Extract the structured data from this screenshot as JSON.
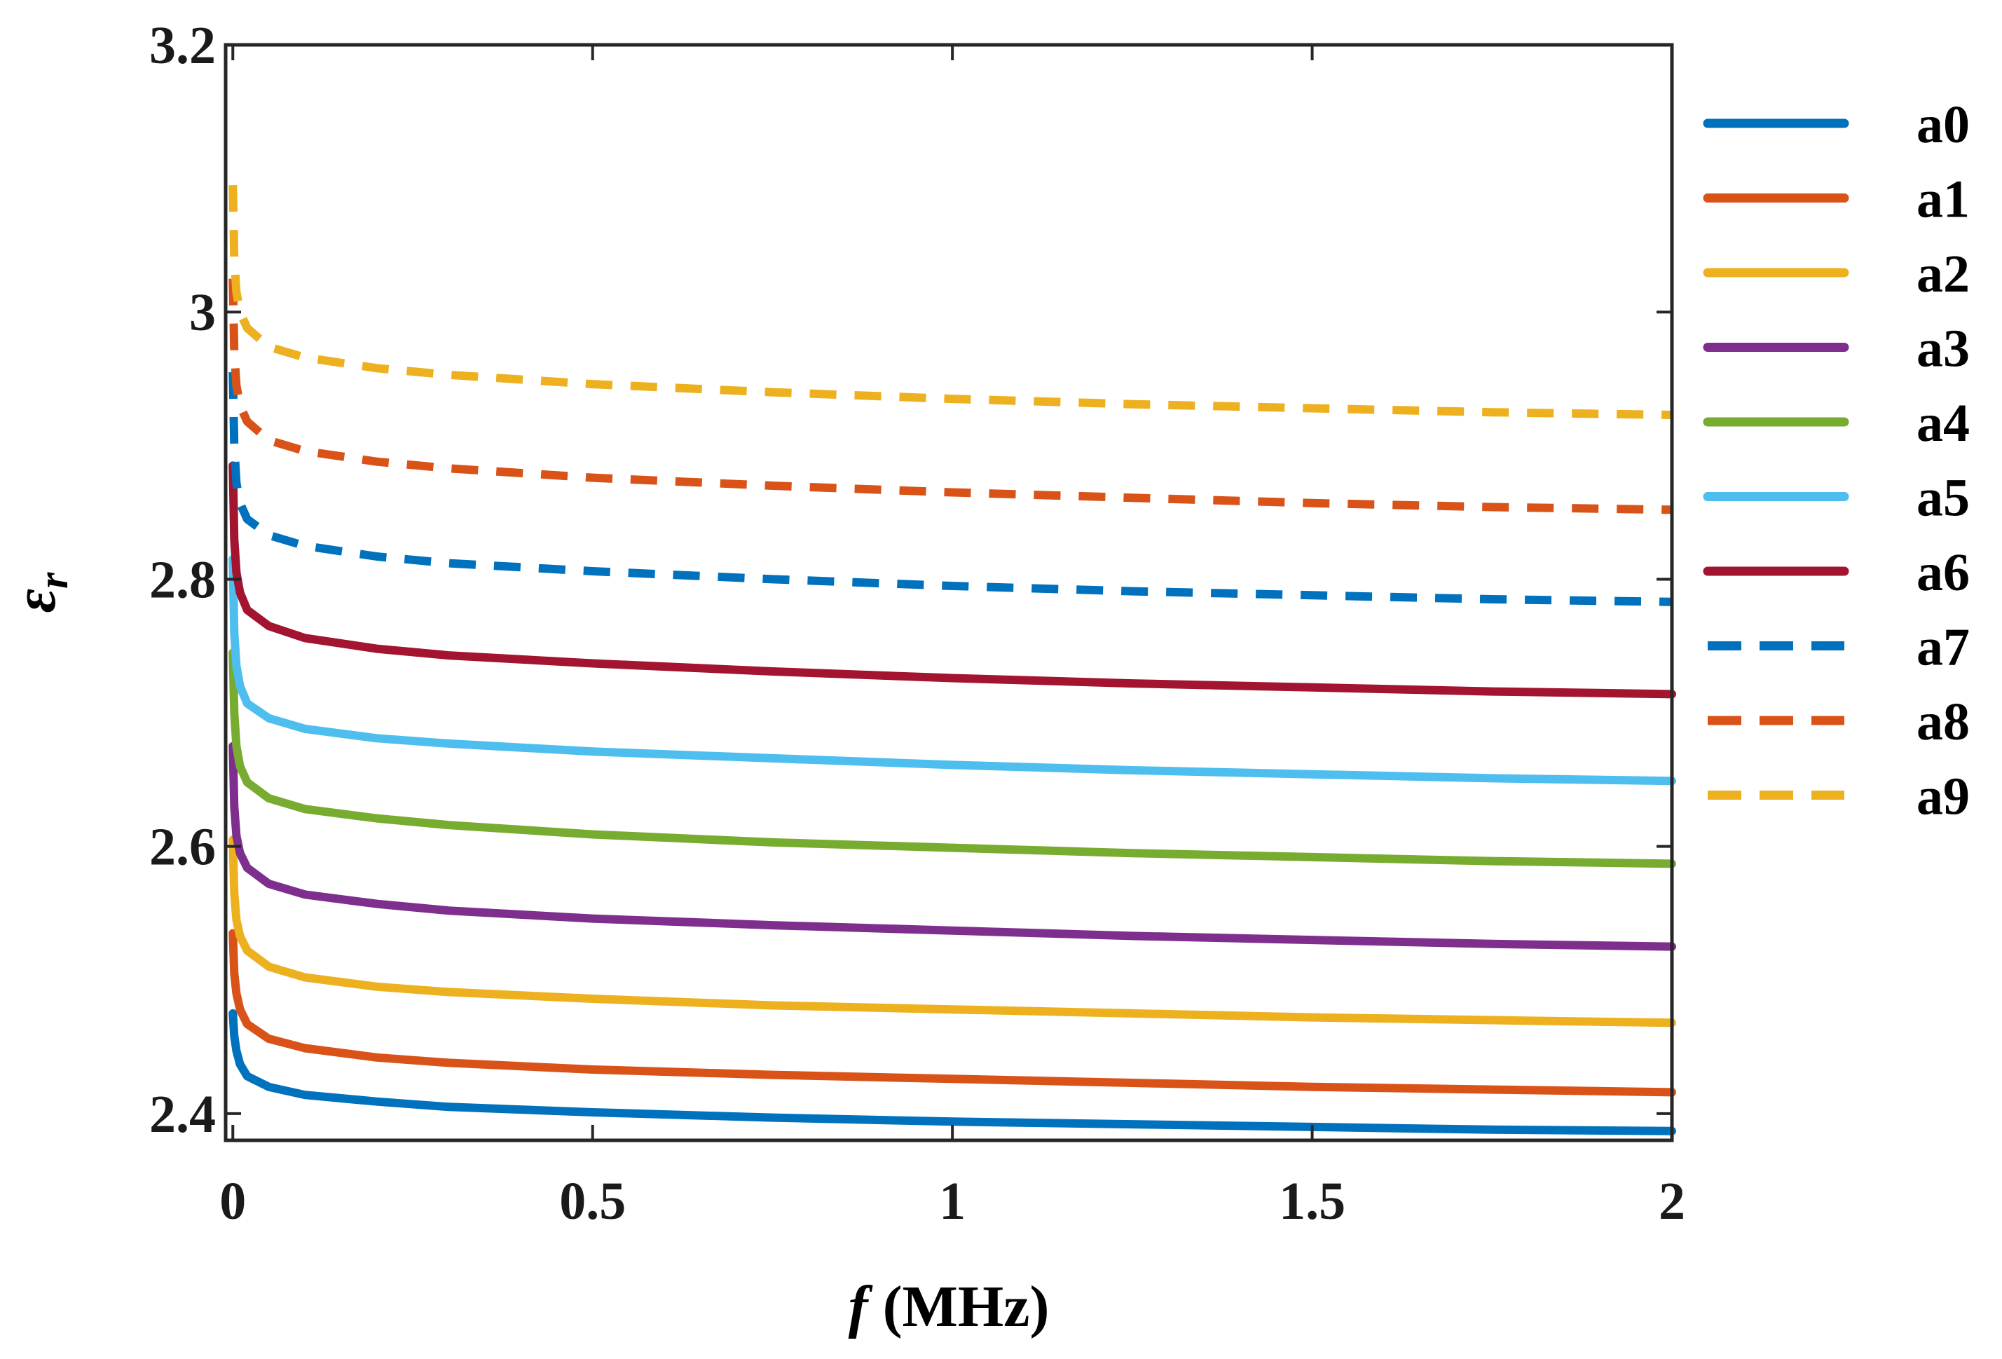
{
  "chart_data": {
    "type": "line",
    "title": "",
    "xlabel": {
      "symbol": "f",
      "unit": " (MHz)"
    },
    "ylabel": {
      "symbol": "ε",
      "subscript": "r"
    },
    "xlim": [
      -0.01,
      2
    ],
    "ylim": [
      2.38,
      3.2
    ],
    "xticks": [
      0,
      0.5,
      1,
      1.5,
      2
    ],
    "xtick_labels": [
      "0",
      "0.5",
      "1",
      "1.5",
      "2"
    ],
    "yticks": [
      2.4,
      2.6,
      2.8,
      3.0,
      3.2
    ],
    "ytick_labels": [
      "2.4",
      "2.6",
      "2.8",
      "3",
      "3.2"
    ],
    "grid": false,
    "legend_position": "outside-right",
    "x": [
      0,
      0.002,
      0.005,
      0.01,
      0.02,
      0.05,
      0.1,
      0.2,
      0.3,
      0.5,
      0.75,
      1.0,
      1.25,
      1.5,
      1.75,
      2.0
    ],
    "series": [
      {
        "name": "a0",
        "color": "#0072BD",
        "style": "solid",
        "values": [
          2.475,
          2.458,
          2.447,
          2.437,
          2.428,
          2.42,
          2.414,
          2.409,
          2.405,
          2.401,
          2.397,
          2.394,
          2.392,
          2.39,
          2.388,
          2.387
        ]
      },
      {
        "name": "a1",
        "color": "#D95319",
        "style": "solid",
        "values": [
          2.535,
          2.505,
          2.49,
          2.478,
          2.467,
          2.456,
          2.449,
          2.442,
          2.438,
          2.433,
          2.429,
          2.426,
          2.423,
          2.42,
          2.418,
          2.416
        ]
      },
      {
        "name": "a2",
        "color": "#EDB120",
        "style": "solid",
        "values": [
          2.605,
          2.565,
          2.545,
          2.533,
          2.522,
          2.51,
          2.502,
          2.495,
          2.491,
          2.486,
          2.481,
          2.478,
          2.475,
          2.472,
          2.47,
          2.468
        ]
      },
      {
        "name": "a3",
        "color": "#7E2F8E",
        "style": "solid",
        "values": [
          2.675,
          2.63,
          2.608,
          2.595,
          2.584,
          2.572,
          2.564,
          2.557,
          2.552,
          2.546,
          2.541,
          2.537,
          2.533,
          2.53,
          2.527,
          2.525
        ]
      },
      {
        "name": "a4",
        "color": "#77AC30",
        "style": "solid",
        "values": [
          2.745,
          2.7,
          2.675,
          2.66,
          2.648,
          2.636,
          2.628,
          2.621,
          2.616,
          2.609,
          2.603,
          2.599,
          2.595,
          2.592,
          2.589,
          2.587
        ]
      },
      {
        "name": "a5",
        "color": "#4DBEEE",
        "style": "solid",
        "values": [
          2.815,
          2.76,
          2.735,
          2.72,
          2.707,
          2.696,
          2.688,
          2.681,
          2.677,
          2.671,
          2.666,
          2.661,
          2.657,
          2.654,
          2.651,
          2.649
        ]
      },
      {
        "name": "a6",
        "color": "#A2142F",
        "style": "solid",
        "values": [
          2.885,
          2.83,
          2.805,
          2.79,
          2.777,
          2.765,
          2.756,
          2.748,
          2.743,
          2.737,
          2.731,
          2.726,
          2.722,
          2.719,
          2.716,
          2.714
        ]
      },
      {
        "name": "a7",
        "color": "#0072BD",
        "style": "dashed",
        "values": [
          2.955,
          2.9,
          2.872,
          2.857,
          2.845,
          2.833,
          2.825,
          2.817,
          2.812,
          2.806,
          2.8,
          2.795,
          2.791,
          2.788,
          2.785,
          2.783
        ]
      },
      {
        "name": "a8",
        "color": "#D95319",
        "style": "dashed",
        "values": [
          3.025,
          2.97,
          2.945,
          2.93,
          2.918,
          2.904,
          2.896,
          2.888,
          2.883,
          2.876,
          2.87,
          2.865,
          2.861,
          2.857,
          2.854,
          2.852
        ]
      },
      {
        "name": "a9",
        "color": "#EDB120",
        "style": "dashed",
        "values": [
          3.095,
          3.04,
          3.015,
          3.0,
          2.988,
          2.974,
          2.966,
          2.958,
          2.953,
          2.946,
          2.94,
          2.935,
          2.931,
          2.928,
          2.925,
          2.923
        ]
      }
    ]
  }
}
